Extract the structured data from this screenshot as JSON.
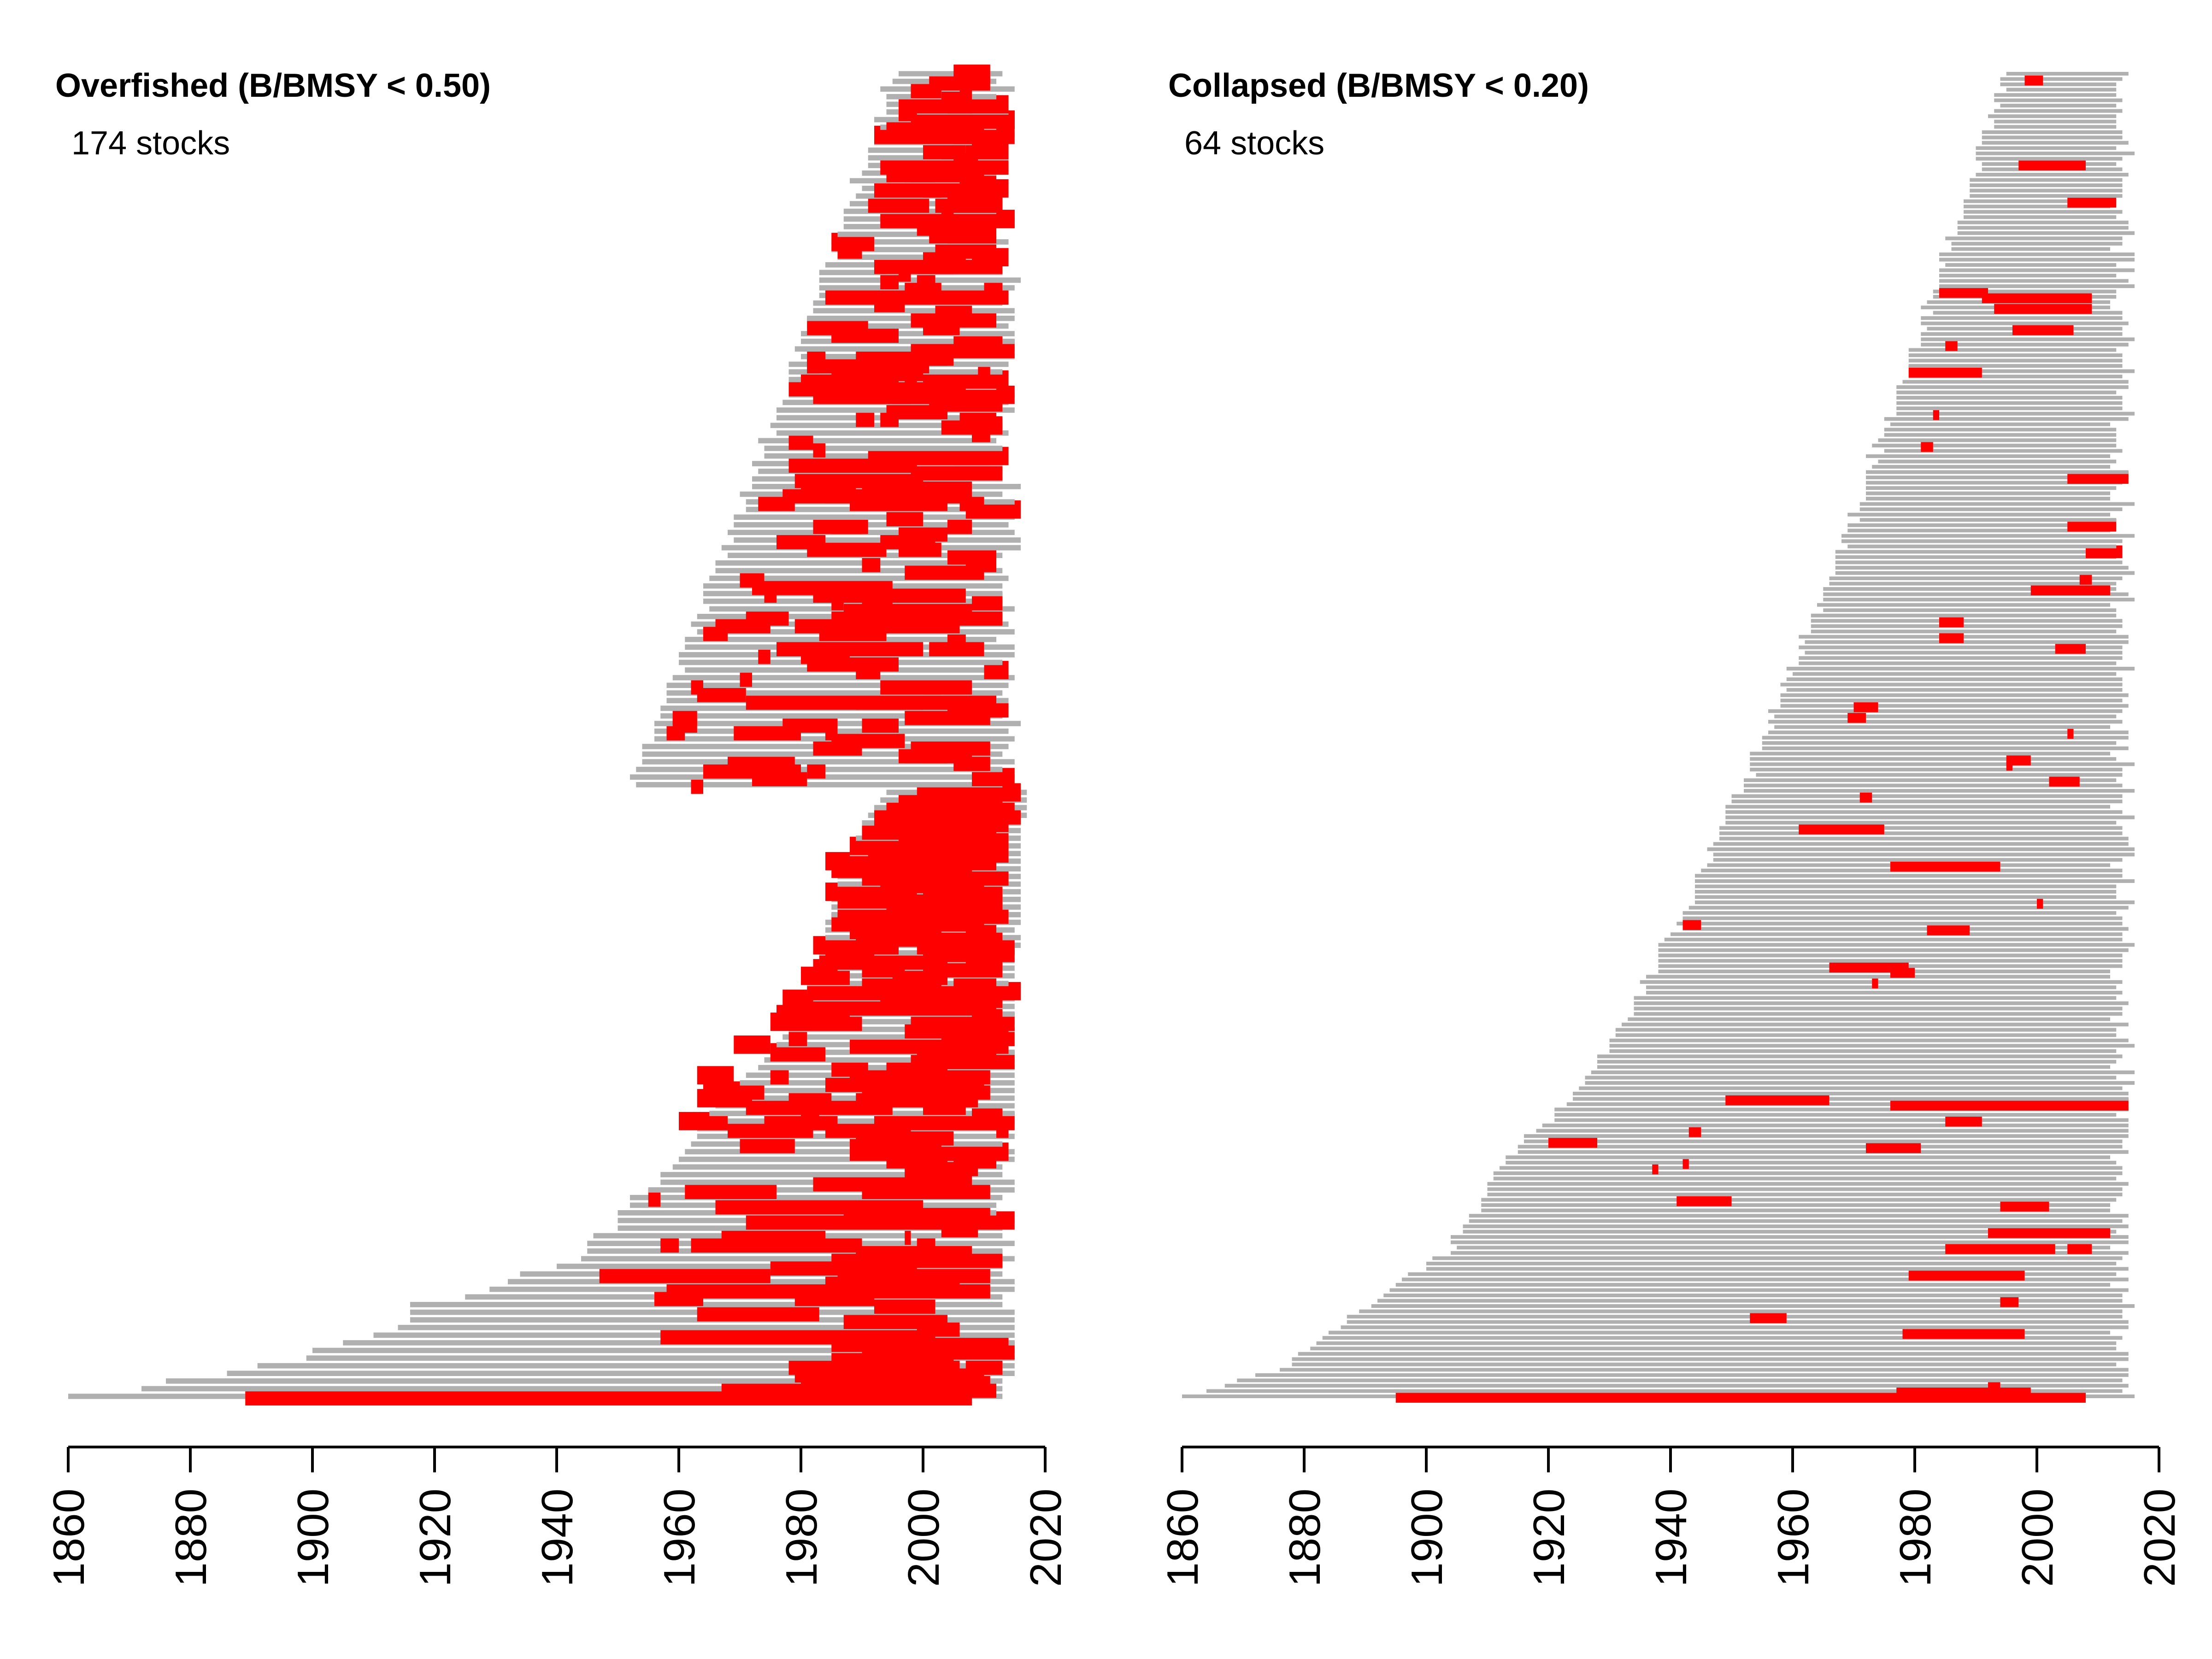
{
  "chart_data": [
    {
      "type": "timeline",
      "title": "Overfished (B/BMSY < 0.50)",
      "subtitle": "174 stocks",
      "xlim": [
        1860,
        2020
      ],
      "x_ticks": [
        "1860",
        "1880",
        "1900",
        "1920",
        "1940",
        "1960",
        "1980",
        "2000",
        "2020"
      ],
      "grid": false,
      "stock_count": 174,
      "colors": {
        "record": "#b0b0b0",
        "status_period": "#ff0000"
      },
      "stocks_sorted_by_start": [
        {
          "start": 1860,
          "end": 2013,
          "highlight": [
            [
              1889,
              2008
            ]
          ]
        },
        {
          "start": 1872,
          "end": 2013,
          "highlight": [
            [
              1967,
              2012
            ]
          ]
        },
        {
          "start": 1876,
          "end": 2013,
          "highlight": [
            [
              1980,
              2011
            ]
          ]
        },
        {
          "start": 1886,
          "end": 2015,
          "highlight": [
            [
              1979,
              2010
            ]
          ]
        },
        {
          "start": 1891,
          "end": 2015,
          "highlight": [
            [
              1978,
              2006
            ],
            [
              2007,
              2013
            ]
          ]
        },
        {
          "start": 1899,
          "end": 2015,
          "highlight": [
            [
              1985,
              2005
            ]
          ]
        },
        {
          "start": 1900,
          "end": 2015,
          "highlight": [
            [
              1990,
              2015
            ]
          ]
        },
        {
          "start": 1905,
          "end": 2015,
          "highlight": [
            [
              1985,
              2014
            ]
          ]
        },
        {
          "start": 1910,
          "end": 2015,
          "highlight": [
            [
              1957,
              2002
            ]
          ]
        },
        {
          "start": 1914,
          "end": 2015,
          "highlight": [
            [
              1999,
              2006
            ]
          ]
        },
        {
          "start": 1916,
          "end": 2015,
          "highlight": [
            [
              1987,
              2004
            ]
          ]
        },
        {
          "start": 1916,
          "end": 2015,
          "highlight": [
            [
              1963,
              1983
            ]
          ]
        },
        {
          "start": 1916,
          "end": 2013,
          "highlight": [
            [
              1992,
              2002
            ]
          ]
        },
        {
          "start": 1925,
          "end": 2013,
          "highlight": [
            [
              1956,
              1964
            ],
            [
              1979,
              1992
            ]
          ]
        },
        {
          "start": 1929,
          "end": 2015,
          "highlight": [
            [
              1958,
              2011
            ]
          ]
        },
        {
          "start": 1932,
          "end": 2015,
          "highlight": [
            [
              1984,
              2006
            ]
          ]
        },
        {
          "start": 1934,
          "end": 2013,
          "highlight": [
            [
              1947,
              1975
            ],
            [
              1986,
              2011
            ]
          ]
        },
        {
          "start": 1940,
          "end": 2013,
          "highlight": [
            [
              1975,
              1999
            ]
          ]
        },
        {
          "start": 1944,
          "end": 2015,
          "highlight": [
            [
              1985,
              2013
            ]
          ]
        },
        {
          "start": 1945,
          "end": 2013,
          "highlight": [
            [
              1989,
              2008
            ]
          ]
        },
        {
          "start": 1945,
          "end": 2015,
          "highlight": [
            [
              1957,
              1960
            ],
            [
              1962,
              1990
            ],
            [
              1999,
              2002
            ]
          ]
        },
        {
          "start": 1946,
          "end": 2013,
          "highlight": [
            [
              1967,
              1984
            ],
            [
              1997,
              1998
            ]
          ]
        },
        {
          "start": 1950,
          "end": 2013,
          "highlight": [
            [
              2003,
              2009
            ]
          ]
        },
        {
          "start": 1950,
          "end": 2015,
          "highlight": [
            [
              1971,
              2015
            ]
          ]
        },
        {
          "start": 1950,
          "end": 2012,
          "highlight": [
            [
              1987,
              2011
            ]
          ]
        },
        {
          "start": 1952,
          "end": 2012,
          "highlight": [
            [
              1966,
              2000
            ]
          ]
        },
        {
          "start": 1952,
          "end": 2013,
          "highlight": [
            [
              1955,
              1957
            ]
          ]
        },
        {
          "start": 1955,
          "end": 2015,
          "highlight": [
            [
              1961,
              1976
            ],
            [
              1990,
              2011
            ]
          ]
        },
        {
          "start": 1957,
          "end": 2015,
          "highlight": [
            [
              1982,
              2008
            ]
          ]
        },
        {
          "start": 1957,
          "end": 2013,
          "highlight": [
            [
              1997,
              2008
            ]
          ]
        },
        {
          "start": 1959,
          "end": 2013,
          "highlight": [
            [
              1997,
              2009
            ]
          ]
        },
        {
          "start": 1960,
          "end": 2015,
          "highlight": [
            [
              1994,
              2004
            ],
            [
              2005,
              2012
            ]
          ]
        },
        {
          "start": 1961,
          "end": 2015,
          "highlight": [
            [
              1988,
              2014
            ]
          ]
        },
        {
          "start": 1962,
          "end": 2013,
          "highlight": [
            [
              1970,
              1979
            ],
            [
              1988,
              2003
            ]
          ]
        },
        {
          "start": 1963,
          "end": 2015,
          "highlight": [
            [
              1989,
              2005
            ]
          ]
        },
        {
          "start": 1963,
          "end": 2013,
          "highlight": [
            [
              1968,
              1982
            ],
            [
              1984,
              1998
            ],
            [
              2012,
              2014
            ]
          ]
        },
        {
          "start": 1965,
          "end": 2015,
          "highlight": [
            [
              1960,
              1968
            ],
            [
              1974,
              1986
            ],
            [
              1992,
              2015
            ]
          ]
        },
        {
          "start": 1965,
          "end": 2015,
          "highlight": [
            [
              1980,
              1983
            ],
            [
              2008,
              2013
            ]
          ]
        },
        {
          "start": 1966,
          "end": 2015,
          "highlight": [
            [
              1971,
              1995
            ],
            [
              2000,
              2007
            ]
          ]
        },
        {
          "start": 1968,
          "end": 2015,
          "highlight": [
            [
              1963,
              1972
            ],
            [
              1978,
              1985
            ],
            [
              1989,
              2009
            ]
          ]
        },
        {
          "start": 1969,
          "end": 2015,
          "highlight": [
            [
              1964,
              1974
            ],
            [
              1990,
              2011
            ]
          ]
        },
        {
          "start": 1970,
          "end": 2015,
          "highlight": [
            [
              1984,
              2010
            ]
          ]
        },
        {
          "start": 1971,
          "end": 2015,
          "highlight": [
            [
              1963,
              1969
            ],
            [
              1975,
              1978
            ],
            [
              1988,
              2011
            ]
          ]
        },
        {
          "start": 1973,
          "end": 2015,
          "highlight": [
            [
              1985,
              1991
            ],
            [
              1994,
              2004
            ]
          ]
        },
        {
          "start": 1974,
          "end": 2015,
          "highlight": [
            [
              1998,
              2015
            ]
          ]
        },
        {
          "start": 1975,
          "end": 2015,
          "highlight": [
            [
              1975,
              1984
            ],
            [
              1999,
              2012
            ]
          ]
        },
        {
          "start": 1976,
          "end": 2014,
          "highlight": [
            [
              1969,
              1975
            ],
            [
              1988,
              2014
            ]
          ]
        },
        {
          "start": 1977,
          "end": 2014,
          "highlight": [
            [
              1978,
              1981
            ],
            [
              2003,
              2015
            ]
          ]
        },
        {
          "start": 1978,
          "end": 2015,
          "highlight": [
            [
              1997,
              2014
            ]
          ]
        },
        {
          "start": 1979,
          "end": 2015,
          "highlight": [
            [
              1975,
              1990
            ],
            [
              1998,
              2015
            ]
          ]
        },
        {
          "start": 1979,
          "end": 2015,
          "highlight": [
            [
              1976,
              1988
            ],
            [
              2008,
              2013
            ]
          ]
        },
        {
          "start": 1980,
          "end": 2015,
          "highlight": [
            [
              1979,
              2012
            ]
          ]
        },
        {
          "start": 1980,
          "end": 2015,
          "highlight": [
            [
              1977,
              1982
            ],
            [
              1993,
              2013
            ]
          ]
        },
        {
          "start": 1981,
          "end": 2015,
          "highlight": [
            [
              1981,
              2016
            ]
          ]
        },
        {
          "start": 1981,
          "end": 2014,
          "highlight": [
            [
              1990,
              2003
            ],
            [
              2005,
              2012
            ]
          ]
        },
        {
          "start": 1982,
          "end": 2015,
          "highlight": [
            [
              1980,
              1988
            ],
            [
              1995,
              2004
            ]
          ]
        },
        {
          "start": 1982,
          "end": 2015,
          "highlight": [
            [
              1982,
              1986
            ],
            [
              1990,
              1997
            ],
            [
              2000,
              2013
            ]
          ]
        },
        {
          "start": 1983,
          "end": 2015,
          "highlight": [
            [
              1983,
              2004
            ],
            [
              2007,
              2013
            ]
          ]
        },
        {
          "start": 1983,
          "end": 2015,
          "highlight": [
            [
              1984,
              1992
            ],
            [
              2000,
              2015
            ]
          ]
        },
        {
          "start": 1984,
          "end": 2016,
          "highlight": [
            [
              1982,
              1996
            ],
            [
              1999,
              2015
            ]
          ]
        },
        {
          "start": 1984,
          "end": 2016,
          "highlight": [
            [
              1989,
              2013
            ]
          ]
        },
        {
          "start": 1984,
          "end": 2015,
          "highlight": [
            [
              1988,
              2003
            ],
            [
              2007,
              2012
            ]
          ]
        },
        {
          "start": 1984,
          "end": 2016,
          "highlight": [
            [
              1985,
              2010
            ]
          ]
        },
        {
          "start": 1985,
          "end": 2016,
          "highlight": [
            [
              1986,
              2014
            ]
          ]
        },
        {
          "start": 1985,
          "end": 2016,
          "highlight": [
            [
              1994,
              2013
            ]
          ]
        },
        {
          "start": 1985,
          "end": 2016,
          "highlight": [
            [
              1986,
              2013
            ]
          ]
        },
        {
          "start": 1986,
          "end": 2016,
          "highlight": [
            [
              1984,
              1999
            ],
            [
              2000,
              2013
            ]
          ]
        },
        {
          "start": 1986,
          "end": 2016,
          "highlight": [
            [
              1993,
              2010
            ]
          ]
        },
        {
          "start": 1986,
          "end": 2016,
          "highlight": [
            [
              1990,
              2014
            ]
          ]
        },
        {
          "start": 1987,
          "end": 2016,
          "highlight": [
            [
              1985,
              2008
            ]
          ]
        },
        {
          "start": 1987,
          "end": 2016,
          "highlight": [
            [
              1984,
              2012
            ]
          ]
        },
        {
          "start": 1988,
          "end": 2016,
          "highlight": [
            [
              1991,
              2014
            ]
          ]
        },
        {
          "start": 1988,
          "end": 2016,
          "highlight": [
            [
              1988,
              2014
            ]
          ]
        },
        {
          "start": 1989,
          "end": 2016,
          "highlight": [
            [
              1996,
              2014
            ]
          ]
        },
        {
          "start": 1990,
          "end": 2016,
          "highlight": [
            [
              1990,
              2012
            ]
          ]
        },
        {
          "start": 1990,
          "end": 2016,
          "highlight": [
            [
              1992,
              2014
            ]
          ]
        },
        {
          "start": 1991,
          "end": 2017,
          "highlight": [
            [
              1992,
              2016
            ]
          ]
        },
        {
          "start": 1992,
          "end": 2017,
          "highlight": [
            [
              1994,
              2015
            ]
          ]
        },
        {
          "start": 1993,
          "end": 2017,
          "highlight": [
            [
              1996,
              2013
            ]
          ]
        },
        {
          "start": 1994,
          "end": 2017,
          "highlight": [
            [
              1999,
              2016
            ]
          ]
        }
      ],
      "overall_start": 1860,
      "overall_end": 2016
    },
    {
      "type": "timeline",
      "title": "Collapsed (B/BMSY < 0.20)",
      "subtitle": "64 stocks",
      "xlim": [
        1860,
        2020
      ],
      "x_ticks": [
        "1860",
        "1880",
        "1900",
        "1920",
        "1940",
        "1960",
        "1980",
        "2000",
        "2020"
      ],
      "grid": false,
      "stock_count": 64,
      "colors": {
        "record": "#b0b0b0",
        "status_period": "#ff0000"
      },
      "overall_start": 1860,
      "overall_end": 2016,
      "highlight_rows_sampled": [
        {
          "row_from_bottom": 0,
          "periods": [
            [
              1895,
              2008
            ]
          ]
        },
        {
          "row_from_bottom": 1,
          "periods": [
            [
              1977,
              1999
            ]
          ]
        },
        {
          "row_from_bottom": 2,
          "periods": [
            [
              1992,
              1994
            ]
          ]
        },
        {
          "row_from_bottom": 12,
          "periods": [
            [
              1978,
              1998
            ]
          ]
        },
        {
          "row_from_bottom": 18,
          "periods": [
            [
              1994,
              1997
            ]
          ]
        },
        {
          "row_from_bottom": 23,
          "periods": [
            [
              1979,
              1998
            ]
          ]
        },
        {
          "row_from_bottom": 28,
          "periods": [
            [
              1985,
              2003
            ],
            [
              2005,
              2009
            ]
          ]
        },
        {
          "row_from_bottom": 31,
          "periods": [
            [
              1992,
              2012
            ]
          ]
        },
        {
          "row_from_bottom": 47,
          "periods": [
            [
              1972,
              1981
            ]
          ]
        },
        {
          "row_from_bottom": 55,
          "periods": [
            [
              1976,
              2015
            ]
          ]
        }
      ]
    }
  ]
}
